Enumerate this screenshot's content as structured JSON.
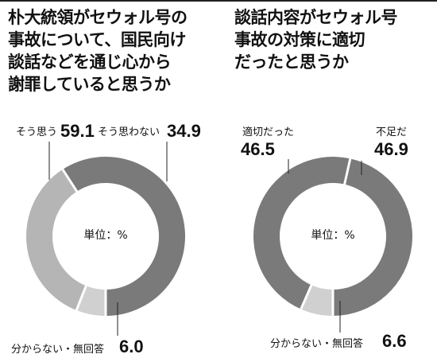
{
  "colors": {
    "dark": "#7a7a7a",
    "mid": "#b5b5b5",
    "light": "#d0d0d0",
    "text": "#111111"
  },
  "chart_data": [
    {
      "type": "pie",
      "title_lines": [
        "朴大統領がセウォル号の",
        "事故について、国民向け",
        "談話などを通じ心から",
        "謝罪していると思うか"
      ],
      "center_label": "単位：%",
      "slices": [
        {
          "label": "そう思う",
          "value": 59.1,
          "value_text": "59.1",
          "color": "#7a7a7a"
        },
        {
          "label": "そう思わない",
          "value": 34.9,
          "value_text": "34.9",
          "color": "#b5b5b5"
        },
        {
          "label": "分からない・無回答",
          "value": 6.0,
          "value_text": "6.0",
          "color": "#d0d0d0"
        }
      ]
    },
    {
      "type": "pie",
      "title_lines": [
        "談話内容がセウォル号",
        "事故の対策に適切",
        "だったと思うか"
      ],
      "center_label": "単位：%",
      "slices": [
        {
          "label": "適切だった",
          "value": 46.5,
          "value_text": "46.5",
          "color": "#7a7a7a"
        },
        {
          "label": "不足だ",
          "value": 46.9,
          "value_text": "46.9",
          "color": "#7a7a7a"
        },
        {
          "label": "分からない・無回答",
          "value": 6.6,
          "value_text": "6.6",
          "color": "#d0d0d0"
        }
      ]
    }
  ]
}
